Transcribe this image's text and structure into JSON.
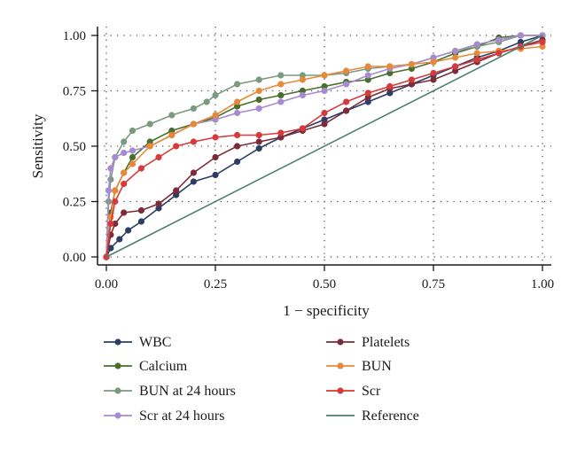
{
  "chart_data": {
    "type": "line",
    "xlabel": "1 − specificity",
    "ylabel": "Sensitivity",
    "xlim": [
      0,
      1
    ],
    "ylim": [
      0,
      1
    ],
    "x_ticks": [
      "0.00",
      "0.25",
      "0.50",
      "0.75",
      "1.00"
    ],
    "y_ticks": [
      "0.00",
      "0.25",
      "0.50",
      "0.75",
      "1.00"
    ],
    "grid": "dotted",
    "legend_position": "bottom",
    "series": [
      {
        "name": "WBC",
        "color": "#2c3e64",
        "points": [
          [
            0,
            0
          ],
          [
            0.01,
            0.04
          ],
          [
            0.03,
            0.08
          ],
          [
            0.05,
            0.12
          ],
          [
            0.08,
            0.16
          ],
          [
            0.12,
            0.22
          ],
          [
            0.16,
            0.28
          ],
          [
            0.2,
            0.34
          ],
          [
            0.25,
            0.37
          ],
          [
            0.3,
            0.43
          ],
          [
            0.35,
            0.49
          ],
          [
            0.4,
            0.54
          ],
          [
            0.45,
            0.58
          ],
          [
            0.5,
            0.62
          ],
          [
            0.55,
            0.66
          ],
          [
            0.6,
            0.7
          ],
          [
            0.65,
            0.74
          ],
          [
            0.7,
            0.78
          ],
          [
            0.75,
            0.82
          ],
          [
            0.8,
            0.86
          ],
          [
            0.85,
            0.9
          ],
          [
            0.9,
            0.93
          ],
          [
            0.95,
            0.97
          ],
          [
            1,
            1
          ]
        ]
      },
      {
        "name": "Calcium",
        "color": "#4a6e2b",
        "points": [
          [
            0,
            0
          ],
          [
            0.01,
            0.2
          ],
          [
            0.02,
            0.3
          ],
          [
            0.04,
            0.38
          ],
          [
            0.06,
            0.45
          ],
          [
            0.1,
            0.52
          ],
          [
            0.15,
            0.57
          ],
          [
            0.2,
            0.6
          ],
          [
            0.25,
            0.63
          ],
          [
            0.3,
            0.68
          ],
          [
            0.35,
            0.71
          ],
          [
            0.4,
            0.73
          ],
          [
            0.45,
            0.75
          ],
          [
            0.5,
            0.77
          ],
          [
            0.55,
            0.79
          ],
          [
            0.6,
            0.8
          ],
          [
            0.65,
            0.83
          ],
          [
            0.7,
            0.85
          ],
          [
            0.75,
            0.88
          ],
          [
            0.8,
            0.92
          ],
          [
            0.85,
            0.95
          ],
          [
            0.9,
            0.99
          ],
          [
            0.95,
            1
          ],
          [
            1,
            1
          ]
        ]
      },
      {
        "name": "BUN at 24 hours",
        "color": "#7a9a80",
        "points": [
          [
            0,
            0
          ],
          [
            0.005,
            0.25
          ],
          [
            0.01,
            0.35
          ],
          [
            0.02,
            0.45
          ],
          [
            0.04,
            0.52
          ],
          [
            0.06,
            0.57
          ],
          [
            0.1,
            0.6
          ],
          [
            0.15,
            0.64
          ],
          [
            0.2,
            0.67
          ],
          [
            0.23,
            0.7
          ],
          [
            0.25,
            0.73
          ],
          [
            0.3,
            0.78
          ],
          [
            0.35,
            0.8
          ],
          [
            0.4,
            0.82
          ],
          [
            0.45,
            0.82
          ],
          [
            0.5,
            0.82
          ],
          [
            0.55,
            0.83
          ],
          [
            0.6,
            0.85
          ],
          [
            0.65,
            0.86
          ],
          [
            0.7,
            0.87
          ],
          [
            0.75,
            0.9
          ],
          [
            0.8,
            0.93
          ],
          [
            0.85,
            0.95
          ],
          [
            0.9,
            0.97
          ],
          [
            0.95,
            1
          ],
          [
            1,
            1
          ]
        ]
      },
      {
        "name": "Scr at 24 hours",
        "color": "#a78bd0",
        "points": [
          [
            0,
            0
          ],
          [
            0.005,
            0.3
          ],
          [
            0.01,
            0.4
          ],
          [
            0.02,
            0.45
          ],
          [
            0.04,
            0.47
          ],
          [
            0.06,
            0.48
          ],
          [
            0.1,
            0.5
          ],
          [
            0.15,
            0.55
          ],
          [
            0.2,
            0.6
          ],
          [
            0.25,
            0.62
          ],
          [
            0.3,
            0.65
          ],
          [
            0.35,
            0.67
          ],
          [
            0.4,
            0.7
          ],
          [
            0.45,
            0.73
          ],
          [
            0.5,
            0.75
          ],
          [
            0.55,
            0.78
          ],
          [
            0.6,
            0.82
          ],
          [
            0.65,
            0.85
          ],
          [
            0.7,
            0.87
          ],
          [
            0.75,
            0.9
          ],
          [
            0.8,
            0.93
          ],
          [
            0.85,
            0.96
          ],
          [
            0.9,
            0.98
          ],
          [
            0.95,
            1
          ],
          [
            1,
            1
          ]
        ]
      },
      {
        "name": "Platelets",
        "color": "#7b2c3b",
        "points": [
          [
            0,
            0
          ],
          [
            0.01,
            0.1
          ],
          [
            0.02,
            0.15
          ],
          [
            0.04,
            0.2
          ],
          [
            0.08,
            0.21
          ],
          [
            0.12,
            0.24
          ],
          [
            0.16,
            0.3
          ],
          [
            0.2,
            0.38
          ],
          [
            0.25,
            0.45
          ],
          [
            0.3,
            0.5
          ],
          [
            0.35,
            0.52
          ],
          [
            0.4,
            0.54
          ],
          [
            0.45,
            0.57
          ],
          [
            0.5,
            0.6
          ],
          [
            0.55,
            0.66
          ],
          [
            0.6,
            0.72
          ],
          [
            0.65,
            0.76
          ],
          [
            0.7,
            0.78
          ],
          [
            0.75,
            0.8
          ],
          [
            0.8,
            0.84
          ],
          [
            0.85,
            0.88
          ],
          [
            0.9,
            0.92
          ],
          [
            0.95,
            0.95
          ],
          [
            1,
            0.98
          ]
        ]
      },
      {
        "name": "BUN",
        "color": "#e8893a",
        "points": [
          [
            0,
            0
          ],
          [
            0.01,
            0.18
          ],
          [
            0.02,
            0.3
          ],
          [
            0.04,
            0.38
          ],
          [
            0.06,
            0.42
          ],
          [
            0.1,
            0.5
          ],
          [
            0.15,
            0.55
          ],
          [
            0.2,
            0.6
          ],
          [
            0.25,
            0.64
          ],
          [
            0.3,
            0.7
          ],
          [
            0.35,
            0.75
          ],
          [
            0.4,
            0.78
          ],
          [
            0.45,
            0.8
          ],
          [
            0.5,
            0.82
          ],
          [
            0.55,
            0.84
          ],
          [
            0.6,
            0.86
          ],
          [
            0.65,
            0.86
          ],
          [
            0.7,
            0.87
          ],
          [
            0.75,
            0.88
          ],
          [
            0.8,
            0.9
          ],
          [
            0.85,
            0.92
          ],
          [
            0.9,
            0.93
          ],
          [
            0.95,
            0.94
          ],
          [
            1,
            0.95
          ]
        ]
      },
      {
        "name": "Scr",
        "color": "#d63a3a",
        "points": [
          [
            0,
            0
          ],
          [
            0.01,
            0.15
          ],
          [
            0.02,
            0.25
          ],
          [
            0.04,
            0.33
          ],
          [
            0.08,
            0.4
          ],
          [
            0.12,
            0.45
          ],
          [
            0.16,
            0.5
          ],
          [
            0.2,
            0.52
          ],
          [
            0.25,
            0.54
          ],
          [
            0.3,
            0.55
          ],
          [
            0.35,
            0.55
          ],
          [
            0.4,
            0.56
          ],
          [
            0.45,
            0.58
          ],
          [
            0.5,
            0.65
          ],
          [
            0.55,
            0.7
          ],
          [
            0.6,
            0.74
          ],
          [
            0.65,
            0.77
          ],
          [
            0.7,
            0.8
          ],
          [
            0.75,
            0.83
          ],
          [
            0.8,
            0.86
          ],
          [
            0.85,
            0.89
          ],
          [
            0.9,
            0.92
          ],
          [
            0.95,
            0.95
          ],
          [
            1,
            0.97
          ]
        ]
      },
      {
        "name": "Reference",
        "color": "#4e7f6e",
        "points": [
          [
            0,
            0
          ],
          [
            1,
            1
          ]
        ],
        "markers": false
      }
    ]
  }
}
